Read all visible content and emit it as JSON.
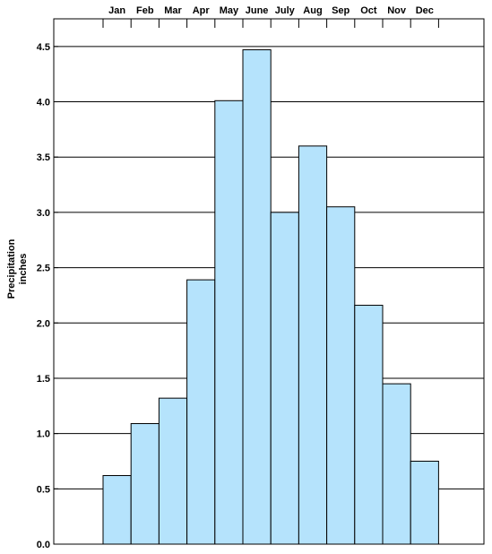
{
  "chart_data": {
    "type": "bar",
    "categories": [
      "Jan",
      "Feb",
      "Mar",
      "Apr",
      "May",
      "June",
      "July",
      "Aug",
      "Sep",
      "Oct",
      "Nov",
      "Dec"
    ],
    "values": [
      0.62,
      1.09,
      1.32,
      2.39,
      4.01,
      4.47,
      3.0,
      3.6,
      3.05,
      2.16,
      1.45,
      0.75
    ],
    "ylabel_lines": [
      "Precipitation",
      "inches"
    ],
    "ylim": [
      0,
      4.75
    ],
    "yticks": [
      "0.0",
      "0.5",
      "1.0",
      "1.5",
      "2.0",
      "2.5",
      "3.0",
      "3.5",
      "4.0",
      "4.5"
    ],
    "category_axis_position": "top",
    "grid": true,
    "bar_color": "#b5e3fc",
    "bar_edge_color": "#000000",
    "grid_color": "#000000"
  }
}
